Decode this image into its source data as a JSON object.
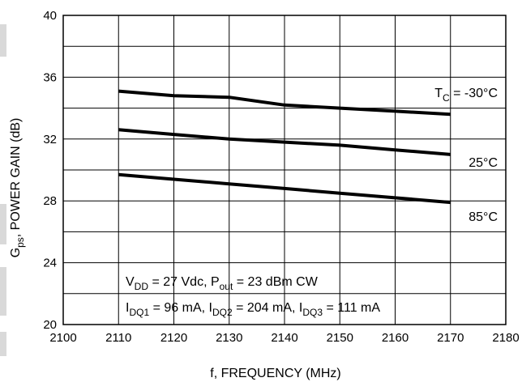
{
  "chart_data": {
    "type": "line",
    "title": "",
    "xlabel": "f, FREQUENCY (MHz)",
    "ylabel": {
      "main": "G",
      "sub": "ps",
      "rest": ", POWER GAIN (dB)"
    },
    "xlim": [
      2100,
      2180
    ],
    "ylim": [
      20,
      40
    ],
    "x_ticks": [
      2100,
      2110,
      2120,
      2130,
      2140,
      2150,
      2160,
      2170,
      2180
    ],
    "y_ticks": [
      20,
      24,
      28,
      32,
      36,
      40
    ],
    "grid": true,
    "series": [
      {
        "name": "T_C = -30°C",
        "x": [
          2110,
          2120,
          2130,
          2140,
          2150,
          2160,
          2170
        ],
        "y": [
          35.1,
          34.8,
          34.7,
          34.2,
          34.0,
          33.8,
          33.6
        ]
      },
      {
        "name": "25°C",
        "x": [
          2110,
          2120,
          2130,
          2140,
          2150,
          2160,
          2170
        ],
        "y": [
          32.6,
          32.3,
          32.0,
          31.8,
          31.6,
          31.3,
          31.0
        ]
      },
      {
        "name": "85°C",
        "x": [
          2110,
          2120,
          2130,
          2140,
          2150,
          2160,
          2170
        ],
        "y": [
          29.7,
          29.4,
          29.1,
          28.8,
          28.5,
          28.2,
          27.9
        ]
      }
    ],
    "series_labels": [
      {
        "prefix": "T",
        "sub": "C",
        "suffix": " = -30°C"
      },
      {
        "prefix": "25°C",
        "sub": "",
        "suffix": ""
      },
      {
        "prefix": "85°C",
        "sub": "",
        "suffix": ""
      }
    ],
    "annotation": {
      "line1": [
        {
          "t": "V"
        },
        {
          "t": "DD",
          "sub": true
        },
        {
          "t": " = 27 Vdc, P"
        },
        {
          "t": "out",
          "sub": true
        },
        {
          "t": " = 23 dBm CW"
        }
      ],
      "line2": [
        {
          "t": "I"
        },
        {
          "t": "DQ1",
          "sub": true
        },
        {
          "t": " = 96 mA, I"
        },
        {
          "t": "DQ2",
          "sub": true
        },
        {
          "t": " = 204 mA, I"
        },
        {
          "t": "DQ3",
          "sub": true
        },
        {
          "t": " = 111 mA"
        }
      ]
    },
    "colors": {
      "line": "#000000",
      "grid": "#000000",
      "background": "#ffffff"
    }
  }
}
